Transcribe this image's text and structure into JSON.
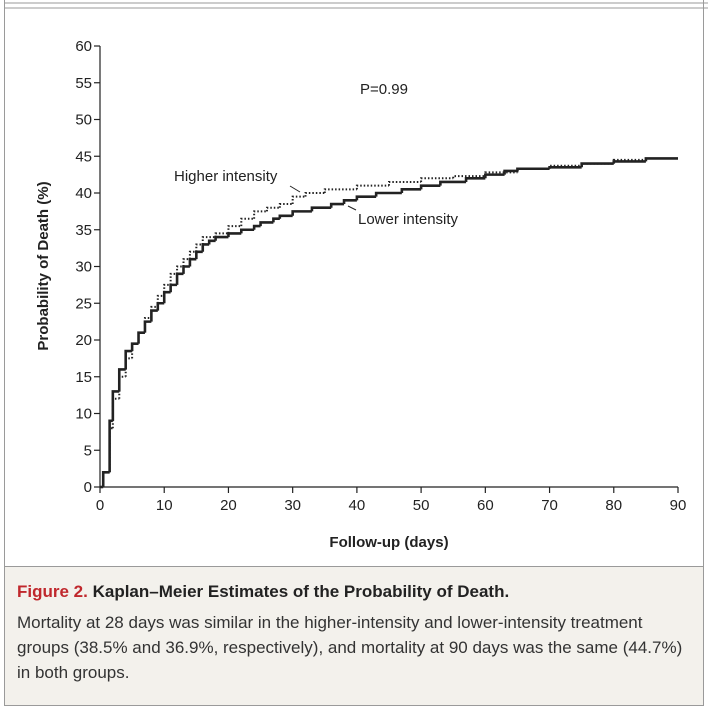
{
  "chart_data": {
    "type": "step",
    "xlabel": "Follow-up (days)",
    "ylabel": "Probability of Death (%)",
    "annotation": "P=0.99",
    "xlim": [
      0,
      90
    ],
    "xticks": [
      0,
      10,
      20,
      30,
      40,
      50,
      60,
      70,
      80,
      90
    ],
    "ylim": [
      0,
      60
    ],
    "yticks": [
      0,
      5,
      10,
      15,
      20,
      25,
      30,
      35,
      40,
      45,
      50,
      55,
      60
    ],
    "series": [
      {
        "name": "Higher intensity",
        "color": "#222222",
        "dash": "dotted",
        "x": [
          0,
          0.5,
          1.5,
          2,
          3,
          4,
          5,
          6,
          7,
          8,
          9,
          10,
          11,
          12,
          13,
          14,
          15,
          16,
          18,
          20,
          22,
          24,
          26,
          28,
          30,
          32,
          35,
          40,
          45,
          50,
          55,
          60,
          65,
          70,
          75,
          80,
          85,
          90
        ],
        "values": [
          0,
          2,
          8,
          12,
          15,
          17.5,
          19.5,
          21,
          23,
          24.5,
          26,
          27.5,
          29,
          30,
          31,
          32,
          33,
          34,
          34.5,
          35.5,
          36.5,
          37.5,
          38,
          38.5,
          39.5,
          40,
          40.5,
          41,
          41.5,
          42,
          42.3,
          42.8,
          43.3,
          43.7,
          44,
          44.5,
          44.7,
          44.7
        ]
      },
      {
        "name": "Lower intensity",
        "color": "#222222",
        "dash": "solid",
        "x": [
          0,
          0.5,
          1.5,
          2,
          3,
          4,
          5,
          6,
          7,
          8,
          9,
          10,
          11,
          12,
          13,
          14,
          15,
          16,
          17,
          18,
          20,
          22,
          24,
          25,
          27,
          28,
          30,
          33,
          36,
          38,
          40,
          43,
          47,
          50,
          53,
          57,
          60,
          63,
          65,
          70,
          75,
          80,
          85,
          90
        ],
        "values": [
          0,
          2,
          9,
          13,
          16,
          18.5,
          19.5,
          21,
          22.5,
          24,
          25,
          26.5,
          27.5,
          29,
          30,
          31,
          32,
          33,
          33.5,
          34,
          34.5,
          35,
          35.5,
          36,
          36.5,
          36.9,
          37.5,
          38,
          38.5,
          39,
          39.5,
          40,
          40.5,
          41,
          41.5,
          42,
          42.5,
          43,
          43.3,
          43.5,
          44,
          44.3,
          44.7,
          44.7
        ]
      }
    ]
  },
  "caption": {
    "label": "Figure 2.",
    "title": "Kaplan–Meier Estimates of the Probability of Death.",
    "text": "Mortality at 28 days was similar in the higher-intensity and lower-intensity treatment groups (38.5% and 36.9%, respectively), and mortality at 90 days was the same (44.7%) in both groups."
  }
}
